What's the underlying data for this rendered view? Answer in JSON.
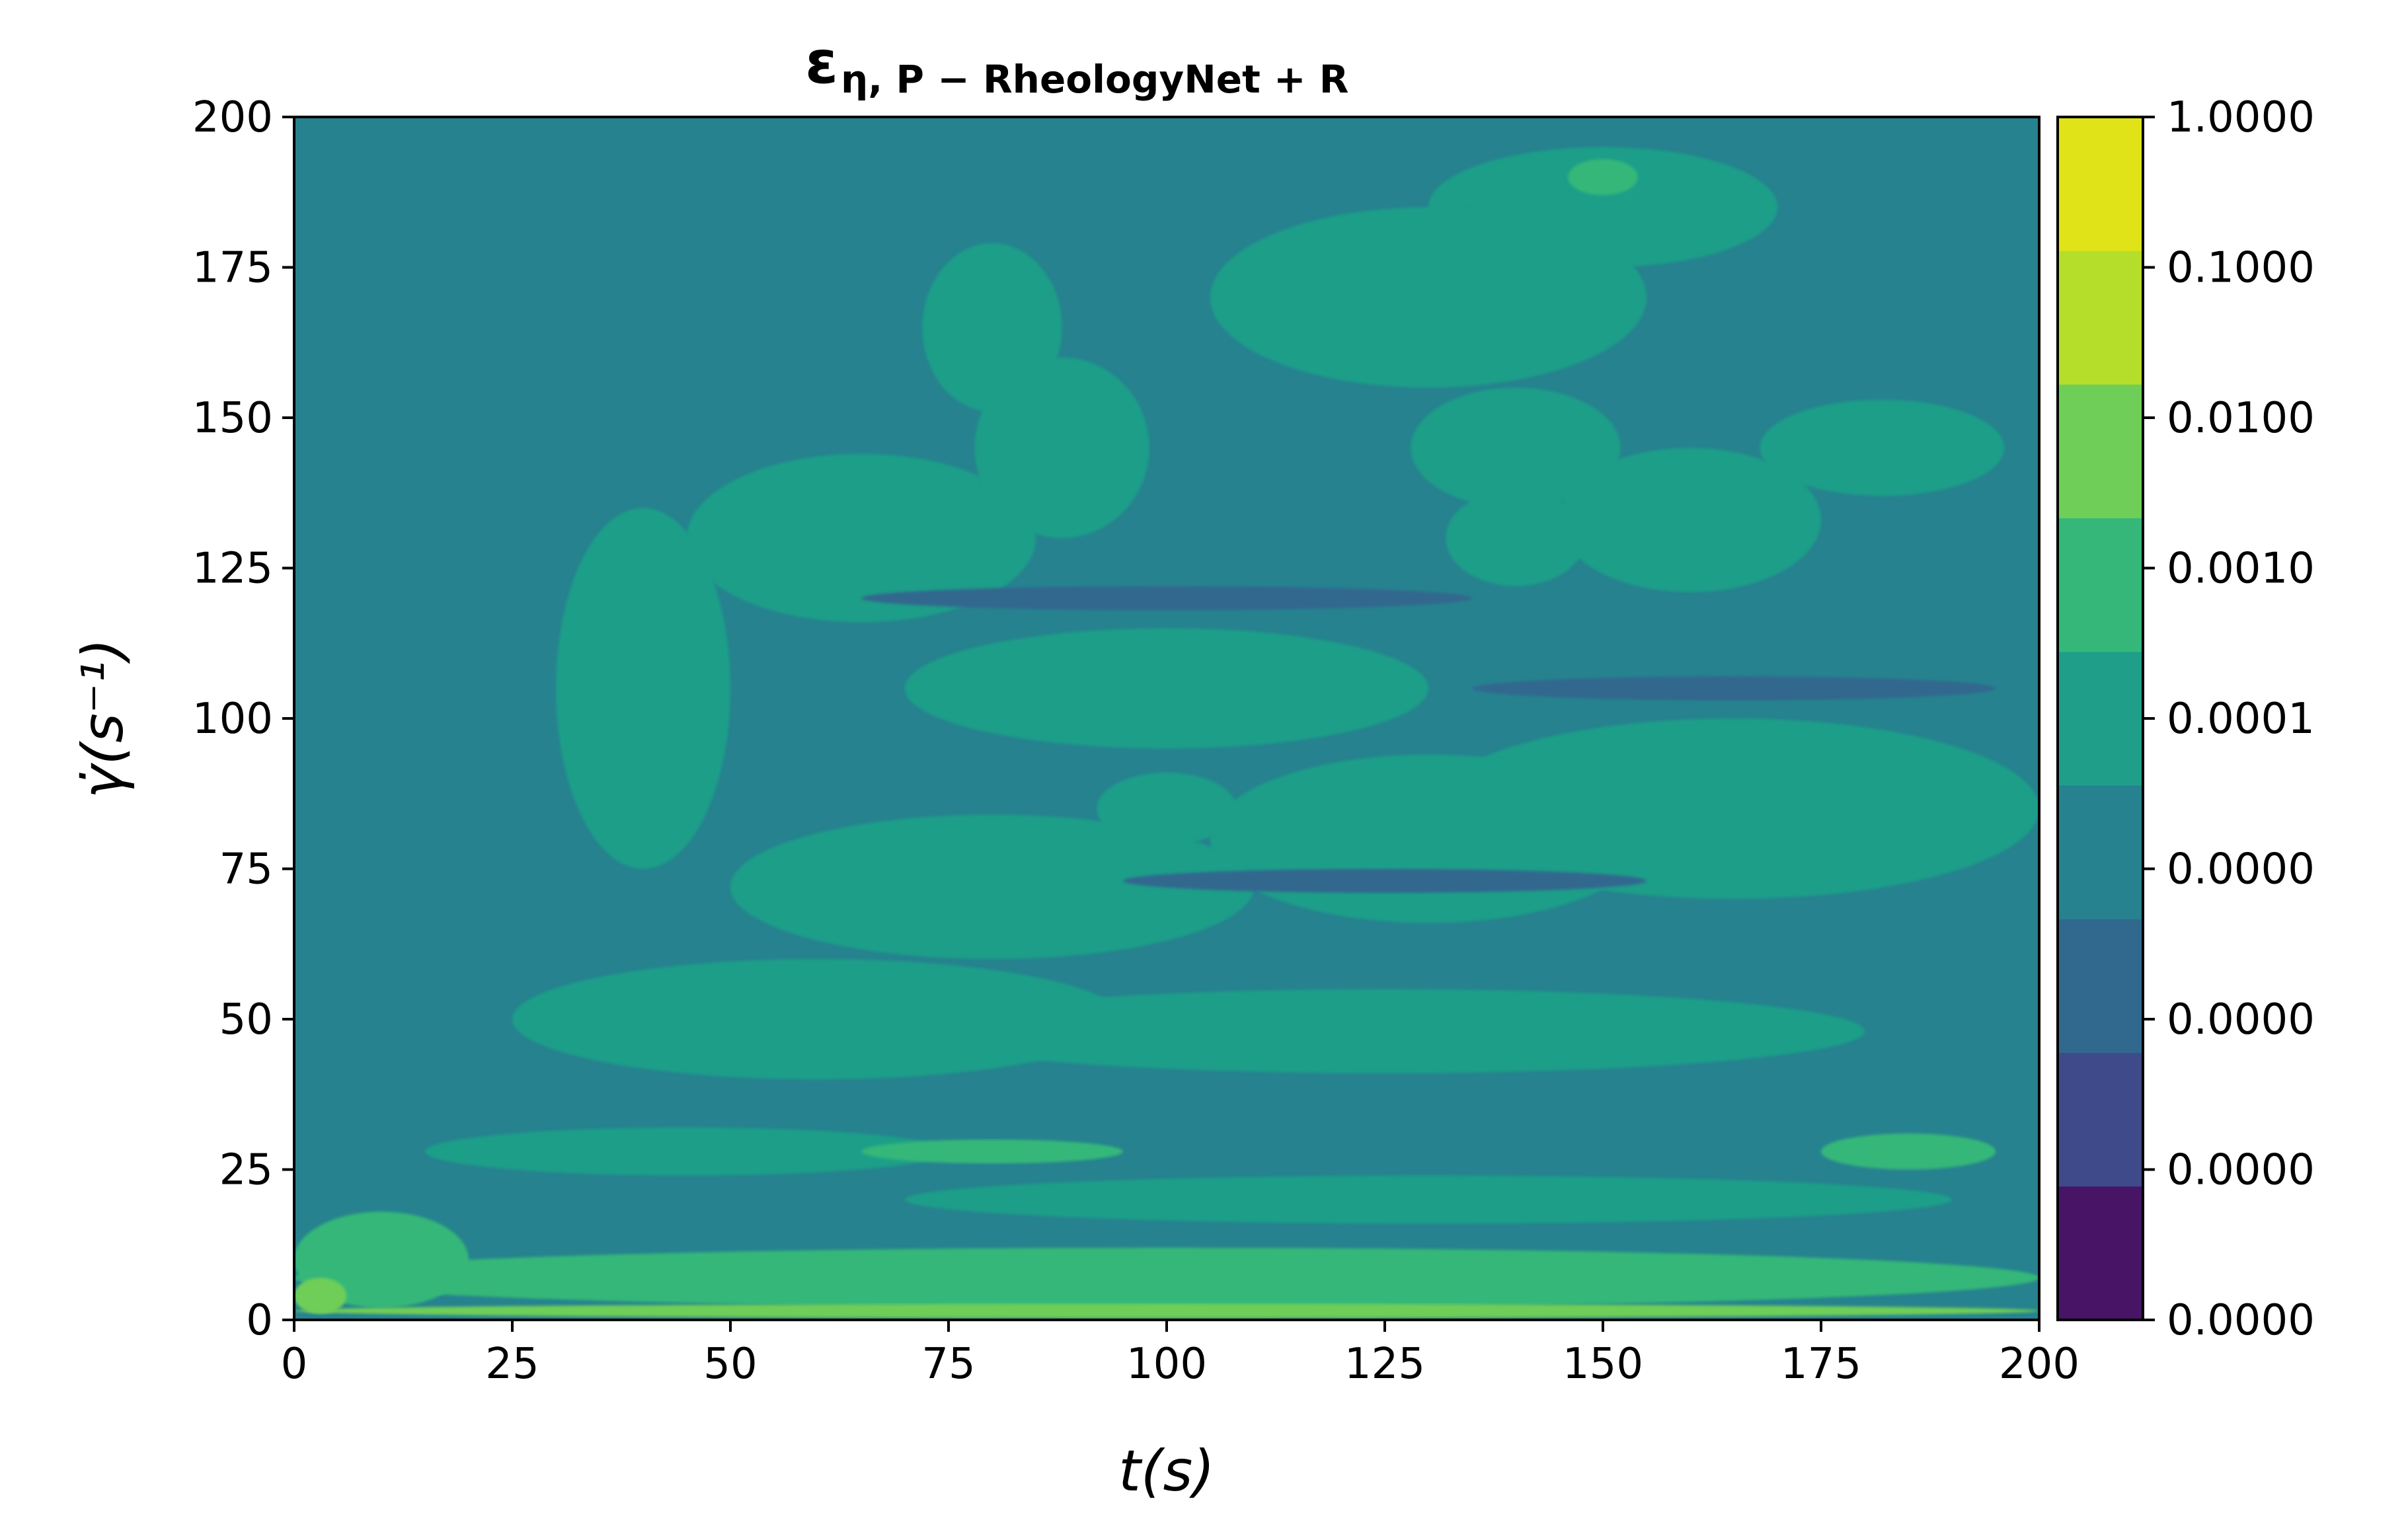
{
  "chart_data": {
    "type": "heatmap",
    "subtype": "filled-contour",
    "title": {
      "symbol": "ε",
      "subscript": "η, P − RheologyNet + R"
    },
    "xlabel": "t(s)",
    "ylabel": "γ̇(s⁻¹)",
    "xlim": [
      0,
      200
    ],
    "ylim": [
      0,
      200
    ],
    "x_ticks": [
      "0",
      "25",
      "50",
      "75",
      "100",
      "125",
      "150",
      "175",
      "200"
    ],
    "y_ticks": [
      "0",
      "25",
      "50",
      "75",
      "100",
      "125",
      "150",
      "175",
      "200"
    ],
    "grid": false,
    "colorbar": {
      "levels": [
        "0.0000",
        "0.0000",
        "0.0000",
        "0.0000",
        "0.0001",
        "0.0010",
        "0.0100",
        "0.1000",
        "1.0000"
      ],
      "colors": [
        "#471466",
        "#3e4a89",
        "#31688e",
        "#26828e",
        "#1f9e89",
        "#35b779",
        "#6ece58",
        "#b5de2b",
        "#dfe318"
      ],
      "scale": "log"
    },
    "background_level_color": "#26828e",
    "features": [
      {
        "t": 150,
        "gamma": 185,
        "level_color": "#1f9e89",
        "rt": 20,
        "rg": 10
      },
      {
        "t": 140,
        "gamma": 145,
        "level_color": "#1f9e89",
        "rt": 12,
        "rg": 10
      },
      {
        "t": 160,
        "gamma": 133,
        "level_color": "#1f9e89",
        "rt": 15,
        "rg": 12
      },
      {
        "t": 182,
        "gamma": 145,
        "level_color": "#1f9e89",
        "rt": 14,
        "rg": 8
      },
      {
        "t": 100,
        "gamma": 105,
        "level_color": "#1f9e89",
        "rt": 30,
        "rg": 10
      },
      {
        "t": 165,
        "gamma": 85,
        "level_color": "#1f9e89",
        "rt": 35,
        "rg": 15
      },
      {
        "t": 130,
        "gamma": 80,
        "level_color": "#1f9e89",
        "rt": 25,
        "rg": 14
      },
      {
        "t": 65,
        "gamma": 130,
        "level_color": "#1f9e89",
        "rt": 20,
        "rg": 14
      },
      {
        "t": 40,
        "gamma": 105,
        "level_color": "#1f9e89",
        "rt": 10,
        "rg": 30
      },
      {
        "t": 80,
        "gamma": 72,
        "level_color": "#1f9e89",
        "rt": 30,
        "rg": 12
      },
      {
        "t": 60,
        "gamma": 50,
        "level_color": "#1f9e89",
        "rt": 35,
        "rg": 10
      },
      {
        "t": 125,
        "gamma": 48,
        "level_color": "#1f9e89",
        "rt": 55,
        "rg": 7
      },
      {
        "t": 130,
        "gamma": 170,
        "level_color": "#1f9e89",
        "rt": 25,
        "rg": 15
      },
      {
        "t": 80,
        "gamma": 165,
        "level_color": "#1f9e89",
        "rt": 8,
        "rg": 14
      },
      {
        "t": 88,
        "gamma": 145,
        "level_color": "#1f9e89",
        "rt": 10,
        "rg": 15
      },
      {
        "t": 140,
        "gamma": 130,
        "level_color": "#1f9e89",
        "rt": 8,
        "rg": 8
      },
      {
        "t": 100,
        "gamma": 85,
        "level_color": "#1f9e89",
        "rt": 8,
        "rg": 6
      },
      {
        "t": 130,
        "gamma": 20,
        "level_color": "#1f9e89",
        "rt": 60,
        "rg": 4
      },
      {
        "t": 45,
        "gamma": 28,
        "level_color": "#1f9e89",
        "rt": 30,
        "rg": 4
      },
      {
        "t": 185,
        "gamma": 28,
        "level_color": "#35b779",
        "rt": 10,
        "rg": 3
      },
      {
        "t": 80,
        "gamma": 28,
        "level_color": "#35b779",
        "rt": 15,
        "rg": 2
      },
      {
        "t": 100,
        "gamma": 7,
        "level_color": "#35b779",
        "rt": 100,
        "rg": 5
      },
      {
        "t": 10,
        "gamma": 10,
        "level_color": "#35b779",
        "rt": 10,
        "rg": 8
      },
      {
        "t": 100,
        "gamma": 1.5,
        "level_color": "#6ece58",
        "rt": 100,
        "rg": 1.2
      },
      {
        "t": 3,
        "gamma": 4,
        "level_color": "#6ece58",
        "rt": 3,
        "rg": 3
      },
      {
        "t": 150,
        "gamma": 190,
        "level_color": "#35b779",
        "rt": 4,
        "rg": 3
      },
      {
        "t": 125,
        "gamma": 73,
        "level_color": "#31688e",
        "rt": 30,
        "rg": 2
      },
      {
        "t": 100,
        "gamma": 120,
        "level_color": "#31688e",
        "rt": 35,
        "rg": 2
      },
      {
        "t": 165,
        "gamma": 105,
        "level_color": "#31688e",
        "rt": 30,
        "rg": 2
      }
    ]
  }
}
